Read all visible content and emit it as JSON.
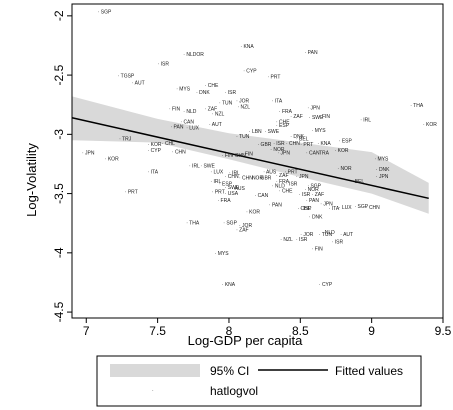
{
  "chart_data": {
    "type": "scatter",
    "xlabel": "Log-GDP per capita",
    "ylabel": "Log-Volatility",
    "xlim": [
      6.9,
      9.5
    ],
    "ylim": [
      -4.55,
      -1.9
    ],
    "xticks": [
      "7",
      "7.5",
      "8",
      "8.5",
      "9",
      "9.5"
    ],
    "yticks": [
      "-2",
      "-2.5",
      "-3",
      "-3.5",
      "-4",
      "-4.5"
    ],
    "grid": false,
    "legend_position": "bottom",
    "legend": {
      "ci_label": "95% CI",
      "fit_label": "Fitted values",
      "points_label": "hatlogvol"
    },
    "colors": {
      "ci_band": "#d9d9d9",
      "fit_line": "#000000",
      "points": "#222222",
      "plot_bg": "#ffffff",
      "frame": "#000000"
    },
    "fitted": {
      "x": [
        6.9,
        9.4
      ],
      "y": [
        -2.86,
        -3.54
      ]
    },
    "ci": {
      "x": [
        6.9,
        7.5,
        8.0,
        8.5,
        9.0,
        9.4
      ],
      "lower": [
        -3.05,
        -3.07,
        -3.21,
        -3.36,
        -3.5,
        -3.67
      ],
      "upper": [
        -2.68,
        -2.87,
        -2.99,
        -3.07,
        -3.15,
        -3.41
      ]
    },
    "points": [
      {
        "label": "SGP",
        "x": 7.08,
        "y": -1.98
      },
      {
        "label": "KNA",
        "x": 8.08,
        "y": -2.27
      },
      {
        "label": "NLDOR",
        "x": 7.68,
        "y": -2.34
      },
      {
        "label": "PAN",
        "x": 8.53,
        "y": -2.32
      },
      {
        "label": "ISR",
        "x": 7.5,
        "y": -2.42
      },
      {
        "label": "CYP",
        "x": 8.1,
        "y": -2.48
      },
      {
        "label": "PRT",
        "x": 8.27,
        "y": -2.53
      },
      {
        "label": "TGSP",
        "x": 7.22,
        "y": -2.52
      },
      {
        "label": "AUT",
        "x": 7.32,
        "y": -2.58
      },
      {
        "label": "MYS",
        "x": 7.63,
        "y": -2.63
      },
      {
        "label": "CHE",
        "x": 7.83,
        "y": -2.6
      },
      {
        "label": "DNK",
        "x": 7.77,
        "y": -2.66
      },
      {
        "label": "ISR",
        "x": 7.97,
        "y": -2.66
      },
      {
        "label": "TUN",
        "x": 7.93,
        "y": -2.75
      },
      {
        "label": "JOR",
        "x": 8.05,
        "y": -2.73
      },
      {
        "label": "NZL",
        "x": 8.06,
        "y": -2.78
      },
      {
        "label": "ITA",
        "x": 8.3,
        "y": -2.73
      },
      {
        "label": "FIN",
        "x": 7.58,
        "y": -2.8
      },
      {
        "label": "NLD",
        "x": 7.68,
        "y": -2.82
      },
      {
        "label": "ZAF",
        "x": 7.83,
        "y": -2.8
      },
      {
        "label": "NZL",
        "x": 7.88,
        "y": -2.84
      },
      {
        "label": "JPN",
        "x": 8.55,
        "y": -2.79
      },
      {
        "label": "FRA",
        "x": 8.35,
        "y": -2.82
      },
      {
        "label": "ZAF",
        "x": 8.43,
        "y": -2.86
      },
      {
        "label": "SWE",
        "x": 8.56,
        "y": -2.87
      },
      {
        "label": "FIN",
        "x": 8.63,
        "y": -2.86
      },
      {
        "label": "IRL",
        "x": 8.92,
        "y": -2.89
      },
      {
        "label": "THA",
        "x": 9.27,
        "y": -2.77
      },
      {
        "label": "KOR",
        "x": 9.36,
        "y": -2.93
      },
      {
        "label": "CAN",
        "x": 7.66,
        "y": -2.91
      },
      {
        "label": "PAN",
        "x": 7.59,
        "y": -2.95
      },
      {
        "label": "LUX",
        "x": 7.7,
        "y": -2.96
      },
      {
        "label": "AUT",
        "x": 7.86,
        "y": -2.93
      },
      {
        "label": "ESP",
        "x": 8.33,
        "y": -2.94
      },
      {
        "label": "CHE",
        "x": 8.33,
        "y": -2.91
      },
      {
        "label": "LBN",
        "x": 8.14,
        "y": -2.99
      },
      {
        "label": "SWE",
        "x": 8.25,
        "y": -2.99
      },
      {
        "label": "MYS",
        "x": 8.58,
        "y": -2.98
      },
      {
        "label": "TUN",
        "x": 8.05,
        "y": -3.03
      },
      {
        "label": "DNK",
        "x": 8.43,
        "y": -3.03
      },
      {
        "label": "BEL",
        "x": 8.47,
        "y": -3.05
      },
      {
        "label": "TRJ",
        "x": 7.23,
        "y": -3.05
      },
      {
        "label": "KOR",
        "x": 7.43,
        "y": -3.1
      },
      {
        "label": "CHL",
        "x": 7.53,
        "y": -3.09
      },
      {
        "label": "GBR",
        "x": 8.2,
        "y": -3.1
      },
      {
        "label": "ISR",
        "x": 8.31,
        "y": -3.09
      },
      {
        "label": "CHN",
        "x": 8.4,
        "y": -3.09
      },
      {
        "label": "PRT",
        "x": 8.5,
        "y": -3.1
      },
      {
        "label": "KNA",
        "x": 8.62,
        "y": -3.09
      },
      {
        "label": "ESP",
        "x": 8.77,
        "y": -3.07
      },
      {
        "label": "CYP",
        "x": 7.43,
        "y": -3.15
      },
      {
        "label": "CHN",
        "x": 7.6,
        "y": -3.16
      },
      {
        "label": "NOR",
        "x": 8.29,
        "y": -3.14
      },
      {
        "label": "JPN",
        "x": 8.34,
        "y": -3.17
      },
      {
        "label": "CAN",
        "x": 8.54,
        "y": -3.17
      },
      {
        "label": "TRA",
        "x": 8.61,
        "y": -3.17
      },
      {
        "label": "KOR",
        "x": 8.74,
        "y": -3.15
      },
      {
        "label": "JPN",
        "x": 6.97,
        "y": -3.17
      },
      {
        "label": "FIN",
        "x": 7.95,
        "y": -3.19
      },
      {
        "label": "CHN",
        "x": 8.02,
        "y": -3.19
      },
      {
        "label": "FIN",
        "x": 8.09,
        "y": -3.18
      },
      {
        "label": "MYS",
        "x": 9.02,
        "y": -3.22
      },
      {
        "label": "KOR",
        "x": 7.13,
        "y": -3.22
      },
      {
        "label": "IRL",
        "x": 7.72,
        "y": -3.28
      },
      {
        "label": "SWE",
        "x": 7.8,
        "y": -3.28
      },
      {
        "label": "ITA",
        "x": 7.43,
        "y": -3.33
      },
      {
        "label": "LUX",
        "x": 7.87,
        "y": -3.33
      },
      {
        "label": "IRL",
        "x": 8.0,
        "y": -3.34
      },
      {
        "label": "AUS",
        "x": 8.24,
        "y": -3.33
      },
      {
        "label": "PRT",
        "x": 8.39,
        "y": -3.33
      },
      {
        "label": "NOR",
        "x": 8.76,
        "y": -3.3
      },
      {
        "label": "DNK",
        "x": 9.03,
        "y": -3.31
      },
      {
        "label": "CHN",
        "x": 7.97,
        "y": -3.37
      },
      {
        "label": "CHN",
        "x": 8.07,
        "y": -3.38
      },
      {
        "label": "NOR",
        "x": 8.14,
        "y": -3.38
      },
      {
        "label": "GBR",
        "x": 8.2,
        "y": -3.38
      },
      {
        "label": "ZAF",
        "x": 8.33,
        "y": -3.36
      },
      {
        "label": "JPN",
        "x": 8.47,
        "y": -3.37
      },
      {
        "label": "JPN",
        "x": 9.03,
        "y": -3.37
      },
      {
        "label": "IRL",
        "x": 7.87,
        "y": -3.41
      },
      {
        "label": "ESP",
        "x": 7.93,
        "y": -3.43
      },
      {
        "label": "FRA",
        "x": 8.33,
        "y": -3.41
      },
      {
        "label": "ISR",
        "x": 8.4,
        "y": -3.43
      },
      {
        "label": "BEL",
        "x": 8.86,
        "y": -3.41
      },
      {
        "label": "SWE",
        "x": 7.97,
        "y": -3.46
      },
      {
        "label": "AUS",
        "x": 8.02,
        "y": -3.47
      },
      {
        "label": "NLD",
        "x": 8.3,
        "y": -3.45
      },
      {
        "label": "SGP",
        "x": 8.55,
        "y": -3.45
      },
      {
        "label": "PRT",
        "x": 7.27,
        "y": -3.5
      },
      {
        "label": "PRT",
        "x": 7.88,
        "y": -3.5
      },
      {
        "label": "USA",
        "x": 7.97,
        "y": -3.51
      },
      {
        "label": "CHE",
        "x": 8.35,
        "y": -3.49
      },
      {
        "label": "NOR",
        "x": 8.53,
        "y": -3.48
      },
      {
        "label": "CAN",
        "x": 8.18,
        "y": -3.53
      },
      {
        "label": "ISR",
        "x": 8.49,
        "y": -3.52
      },
      {
        "label": "ZAF",
        "x": 8.58,
        "y": -3.52
      },
      {
        "label": "PAN",
        "x": 8.54,
        "y": -3.57
      },
      {
        "label": "FRA",
        "x": 7.92,
        "y": -3.57
      },
      {
        "label": "PAN",
        "x": 8.28,
        "y": -3.61
      },
      {
        "label": "JPN",
        "x": 8.64,
        "y": -3.6
      },
      {
        "label": "CHE",
        "x": 8.48,
        "y": -3.64
      },
      {
        "label": "ISP",
        "x": 8.5,
        "y": -3.64
      },
      {
        "label": "ITA",
        "x": 8.7,
        "y": -3.64
      },
      {
        "label": "LUX",
        "x": 8.77,
        "y": -3.63
      },
      {
        "label": "SGP",
        "x": 8.88,
        "y": -3.62
      },
      {
        "label": "CHN",
        "x": 8.96,
        "y": -3.63
      },
      {
        "label": "KOR",
        "x": 8.12,
        "y": -3.67
      },
      {
        "label": "DNK",
        "x": 8.56,
        "y": -3.71
      },
      {
        "label": "THA",
        "x": 7.7,
        "y": -3.76
      },
      {
        "label": "SGP",
        "x": 7.96,
        "y": -3.76
      },
      {
        "label": "JOR",
        "x": 8.07,
        "y": -3.78
      },
      {
        "label": "ZAF",
        "x": 8.05,
        "y": -3.82
      },
      {
        "label": "JOR",
        "x": 8.5,
        "y": -3.86
      },
      {
        "label": "NLD",
        "x": 8.65,
        "y": -3.84
      },
      {
        "label": "TUN",
        "x": 8.63,
        "y": -3.86
      },
      {
        "label": "AUT",
        "x": 8.78,
        "y": -3.86
      },
      {
        "label": "NZL",
        "x": 8.36,
        "y": -3.9
      },
      {
        "label": "ISR",
        "x": 8.47,
        "y": -3.9
      },
      {
        "label": "ISR",
        "x": 8.72,
        "y": -3.92
      },
      {
        "label": "FIN",
        "x": 8.58,
        "y": -3.98
      },
      {
        "label": "MYS",
        "x": 7.9,
        "y": -4.02
      },
      {
        "label": "KNA",
        "x": 7.95,
        "y": -4.28
      },
      {
        "label": "CYP",
        "x": 8.63,
        "y": -4.28
      }
    ]
  }
}
